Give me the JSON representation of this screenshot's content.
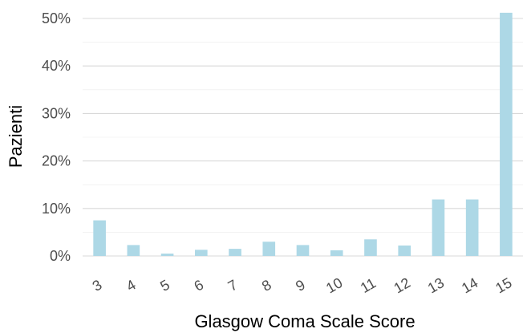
{
  "chart_data": {
    "type": "bar",
    "title": "",
    "xlabel": "Glasgow Coma Scale Score",
    "ylabel": "Pazienti",
    "categories": [
      "3",
      "4",
      "5",
      "6",
      "7",
      "8",
      "9",
      "10",
      "11",
      "12",
      "13",
      "14",
      "15"
    ],
    "values": [
      7.5,
      2.3,
      0.5,
      1.3,
      1.5,
      3.0,
      2.3,
      1.2,
      3.5,
      2.2,
      11.9,
      11.9,
      51.2
    ],
    "value_unit": "%",
    "ylim": [
      0,
      52
    ],
    "yticks": [
      0,
      10,
      20,
      30,
      40,
      50
    ],
    "ytick_labels": [
      "0%",
      "10%",
      "20%",
      "30%",
      "40%",
      "50%"
    ],
    "grid": true,
    "legend": false,
    "bar_color": "#add8e6"
  }
}
